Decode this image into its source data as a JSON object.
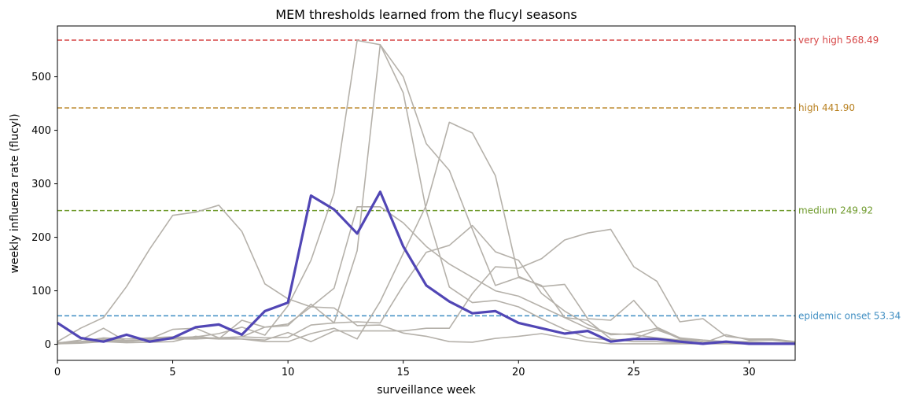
{
  "chart_data": {
    "type": "line",
    "title": "MEM thresholds learned from the flucyl seasons",
    "xlabel": "surveillance week",
    "ylabel": "weekly influenza rate (flucyl)",
    "xlim": [
      0,
      32
    ],
    "ylim": [
      -30,
      595
    ],
    "xticks": [
      0,
      5,
      10,
      15,
      20,
      25,
      30
    ],
    "yticks": [
      0,
      100,
      200,
      300,
      400,
      500
    ],
    "grid": false,
    "thresholds": [
      {
        "label": "very high 568.49",
        "value": 568.49,
        "color": "#d64545"
      },
      {
        "label": "high 441.90",
        "value": 441.9,
        "color": "#b8801f"
      },
      {
        "label": "medium 249.92",
        "value": 249.92,
        "color": "#6f9a2c"
      },
      {
        "label": "epidemic onset 53.34",
        "value": 53.34,
        "color": "#3f8ec2"
      }
    ],
    "background_series_color": "#b5b1aa",
    "highlight_color": "#5146b5",
    "background_series": [
      {
        "x": [
          0,
          1,
          2,
          3,
          4,
          5,
          6,
          7,
          8,
          9,
          10,
          11,
          12,
          13,
          14,
          15,
          16,
          17,
          18,
          19,
          20,
          21,
          22,
          23,
          24,
          25,
          26,
          27,
          28,
          29,
          30,
          31,
          32
        ],
        "values": [
          5,
          30,
          50,
          108,
          178,
          241,
          247,
          260,
          211,
          113,
          85,
          70,
          68,
          35,
          36,
          21,
          15,
          5,
          4,
          11,
          15,
          20,
          12,
          5,
          1,
          1,
          1,
          1,
          1,
          1,
          1,
          1,
          0
        ]
      },
      {
        "x": [
          0,
          1,
          2,
          3,
          4,
          5,
          6,
          7,
          8,
          9,
          10,
          11,
          12,
          13,
          14,
          15,
          16,
          17,
          18,
          19,
          20,
          21,
          22,
          23,
          24,
          25,
          26,
          27,
          28,
          29,
          30,
          31,
          32
        ],
        "values": [
          2,
          4,
          10,
          7,
          10,
          12,
          14,
          20,
          32,
          17,
          72,
          157,
          283,
          568,
          560,
          470,
          250,
          107,
          78,
          82,
          70,
          48,
          28,
          12,
          8,
          10,
          27,
          12,
          5,
          2,
          2,
          1,
          1
        ]
      },
      {
        "x": [
          0,
          1,
          2,
          3,
          4,
          5,
          6,
          7,
          8,
          9,
          10,
          11,
          12,
          13,
          14,
          15,
          16,
          17,
          18,
          19,
          20,
          21,
          22,
          23,
          24,
          25,
          26,
          27,
          28,
          29,
          30,
          31,
          32
        ],
        "values": [
          3,
          5,
          12,
          10,
          12,
          14,
          12,
          12,
          14,
          12,
          13,
          36,
          40,
          42,
          40,
          110,
          172,
          185,
          222,
          173,
          157,
          95,
          62,
          37,
          18,
          20,
          30,
          10,
          5,
          4,
          3,
          3,
          2
        ]
      },
      {
        "x": [
          0,
          1,
          2,
          3,
          4,
          5,
          6,
          7,
          8,
          9,
          10,
          11,
          12,
          13,
          14,
          15,
          16,
          17,
          18,
          19,
          20,
          21,
          22,
          23,
          24,
          25,
          26,
          27,
          28,
          29,
          30,
          31,
          32
        ],
        "values": [
          1,
          3,
          8,
          6,
          8,
          10,
          10,
          12,
          14,
          32,
          38,
          70,
          105,
          257,
          257,
          227,
          183,
          150,
          125,
          100,
          90,
          70,
          50,
          30,
          20,
          18,
          12,
          8,
          5,
          3,
          3,
          2,
          1
        ]
      },
      {
        "x": [
          0,
          1,
          2,
          3,
          4,
          5,
          6,
          7,
          8,
          9,
          10,
          11,
          12,
          13,
          14,
          15,
          16,
          17,
          18,
          19,
          20,
          21,
          22,
          23,
          24,
          25,
          26,
          27,
          28,
          29,
          30,
          31,
          32
        ],
        "values": [
          2,
          8,
          30,
          5,
          10,
          28,
          30,
          12,
          10,
          5,
          5,
          20,
          30,
          10,
          80,
          170,
          260,
          415,
          395,
          315,
          127,
          108,
          112,
          48,
          45,
          82,
          32,
          12,
          8,
          5,
          5,
          3,
          2
        ]
      },
      {
        "x": [
          0,
          1,
          2,
          3,
          4,
          5,
          6,
          7,
          8,
          9,
          10,
          11,
          12,
          13,
          14,
          15,
          16,
          17,
          18,
          19,
          20,
          21,
          22,
          23,
          24,
          25,
          26,
          27,
          28,
          29,
          30,
          31,
          32
        ],
        "values": [
          3,
          5,
          6,
          5,
          8,
          10,
          12,
          10,
          45,
          32,
          35,
          75,
          40,
          175,
          560,
          500,
          375,
          325,
          215,
          110,
          125,
          110,
          50,
          45,
          10,
          5,
          5,
          2,
          2,
          18,
          8,
          8,
          3
        ]
      },
      {
        "x": [
          0,
          1,
          2,
          3,
          4,
          5,
          6,
          7,
          8,
          9,
          10,
          11,
          12,
          13,
          14,
          15,
          16,
          17,
          18,
          19,
          20,
          21,
          22,
          23,
          24,
          25,
          26,
          27,
          28,
          29,
          30,
          31,
          32
        ],
        "values": [
          1,
          2,
          5,
          3,
          4,
          5,
          15,
          10,
          10,
          8,
          22,
          5,
          25,
          25,
          25,
          25,
          30,
          30,
          95,
          145,
          142,
          160,
          195,
          208,
          215,
          145,
          118,
          42,
          48,
          15,
          10,
          10,
          5
        ]
      }
    ],
    "highlight_series": {
      "x": [
        0,
        1,
        2,
        3,
        4,
        5,
        6,
        7,
        8,
        9,
        10,
        11,
        12,
        13,
        14,
        15,
        16,
        17,
        18,
        19,
        20,
        21,
        22,
        23,
        24,
        25,
        26,
        27,
        28,
        29,
        30,
        31,
        32
      ],
      "values": [
        40,
        12,
        5,
        18,
        5,
        12,
        32,
        37,
        18,
        62,
        78,
        278,
        252,
        207,
        285,
        183,
        110,
        80,
        58,
        62,
        40,
        30,
        20,
        25,
        5,
        10,
        10,
        5,
        1,
        5,
        1,
        1,
        1
      ]
    }
  }
}
